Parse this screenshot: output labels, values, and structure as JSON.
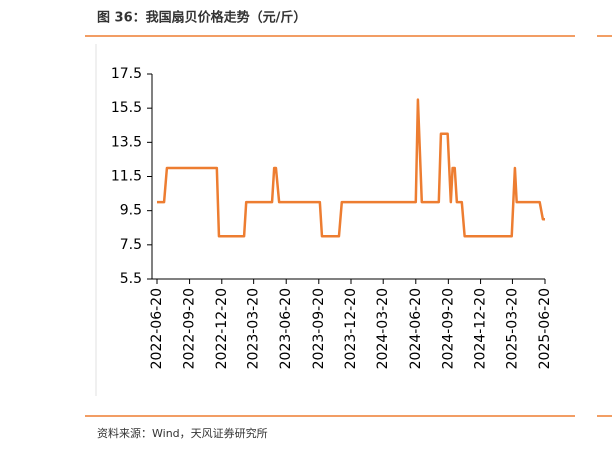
{
  "chart_data": {
    "type": "line",
    "title": "图 36：我国扇贝价格走势（元/斤）",
    "source": "资料来源：Wind，天风证券研究所",
    "x": [
      "2022-06-20",
      "2022-07-10",
      "2022-07-18",
      "2022-12-06",
      "2022-12-12",
      "2023-02-21",
      "2023-02-27",
      "2023-05-11",
      "2023-05-17",
      "2023-05-22",
      "2023-05-31",
      "2023-09-23",
      "2023-09-29",
      "2023-11-16",
      "2023-11-24",
      "2024-06-20",
      "2024-06-26",
      "2024-07-07",
      "2024-08-24",
      "2024-08-30",
      "2024-09-18",
      "2024-09-27",
      "2024-10-02",
      "2024-10-08",
      "2024-10-14",
      "2024-10-28",
      "2024-11-05",
      "2025-03-18",
      "2025-03-27",
      "2025-04-01",
      "2025-06-05",
      "2025-06-14",
      "2025-06-20"
    ],
    "series": [
      {
        "color": "#ed7d31",
        "values": [
          10,
          10,
          12,
          12,
          8,
          8,
          10,
          10,
          12,
          12,
          10,
          10,
          8,
          8,
          10,
          10,
          16,
          10,
          10,
          14,
          14,
          10,
          12,
          12,
          10,
          10,
          8,
          8,
          12,
          10,
          10,
          9,
          9
        ]
      }
    ],
    "xlim": [
      "2022-06-20",
      "2025-06-20"
    ],
    "xticks": [
      "2022-06-20",
      "2022-09-20",
      "2022-12-20",
      "2023-03-20",
      "2023-06-20",
      "2023-09-20",
      "2023-12-20",
      "2024-03-20",
      "2024-06-20",
      "2024-09-20",
      "2024-12-20",
      "2025-03-20",
      "2025-06-20"
    ],
    "ylim": [
      5.5,
      17.5
    ],
    "yticks": [
      5.5,
      7.5,
      9.5,
      11.5,
      13.5,
      15.5,
      17.5
    ]
  }
}
